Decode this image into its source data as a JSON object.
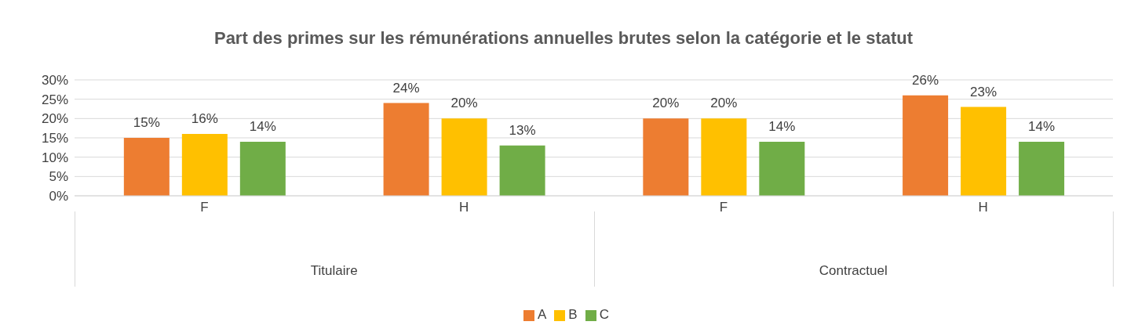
{
  "chart_data": {
    "type": "bar",
    "title": "Part des primes sur les rémunérations annuelles brutes selon la catégorie et le statut",
    "categories": [
      "F",
      "H",
      "F",
      "H"
    ],
    "series": [
      {
        "name": "A",
        "color": "#ed7d31",
        "values": [
          15,
          24,
          20,
          26
        ],
        "value_labels": [
          "15%",
          "24%",
          "20%",
          "26%"
        ]
      },
      {
        "name": "B",
        "color": "#ffc000",
        "values": [
          16,
          20,
          20,
          23
        ],
        "value_labels": [
          "16%",
          "20%",
          "20%",
          "23%"
        ]
      },
      {
        "name": "C",
        "color": "#70ad47",
        "values": [
          14,
          13,
          14,
          14
        ],
        "value_labels": [
          "14%",
          "13%",
          "14%",
          "14%"
        ]
      }
    ],
    "annotations": [
      "Titulaire",
      "Contractuel"
    ],
    "ylim": [
      0,
      30
    ],
    "yticks": [
      {
        "value": 0,
        "label": "0%"
      },
      {
        "value": 5,
        "label": "5%"
      },
      {
        "value": 10,
        "label": "10%"
      },
      {
        "value": 15,
        "label": "15%"
      },
      {
        "value": 20,
        "label": "20%"
      },
      {
        "value": 25,
        "label": "25%"
      },
      {
        "value": 30,
        "label": "30%"
      }
    ],
    "grid": "y",
    "legend": "bottom"
  }
}
